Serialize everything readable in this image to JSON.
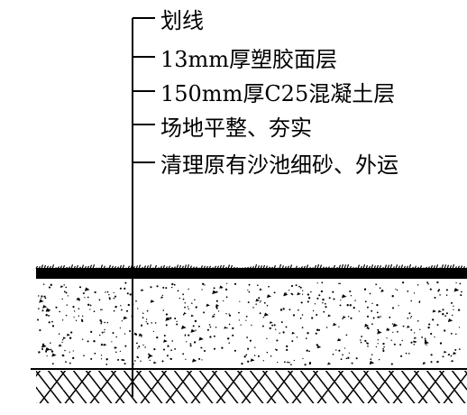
{
  "callouts": [
    {
      "id": "striping",
      "text": "划线"
    },
    {
      "id": "rubber-layer",
      "text": "13mm厚塑胶面层"
    },
    {
      "id": "concrete-layer",
      "text": "150mm厚C25混凝土层"
    },
    {
      "id": "subgrade",
      "text": "场地平整、夯实"
    },
    {
      "id": "clean-sand",
      "text": "清理原有沙池细砂、外运"
    }
  ]
}
